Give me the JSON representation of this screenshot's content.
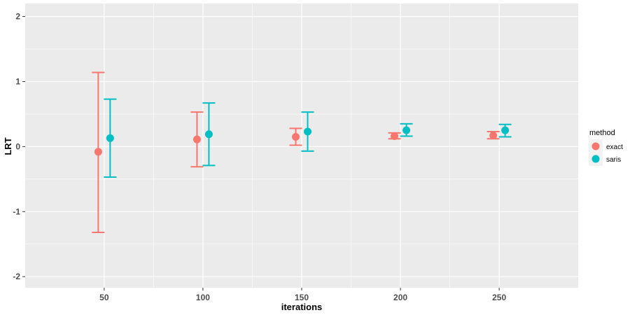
{
  "chart_data": {
    "type": "scatter",
    "subtype": "point-range with error bars",
    "title": "",
    "xlabel": "iterations",
    "ylabel": "LRT",
    "categories": [
      "50",
      "100",
      "150",
      "200",
      "250"
    ],
    "ylim": [
      -2.17,
      2.2
    ],
    "y_ticks": [
      "-2",
      "-1",
      "0",
      "1",
      "2"
    ],
    "x_ticks": [
      "50",
      "100",
      "150",
      "200",
      "250"
    ],
    "grid": true,
    "legend": {
      "title": "method",
      "position": "right"
    },
    "series": [
      {
        "name": "exact",
        "color": "#F8766D",
        "points": [
          {
            "x": "50",
            "y": -0.08,
            "ymin": -1.32,
            "ymax": 1.14
          },
          {
            "x": "100",
            "y": 0.11,
            "ymin": -0.31,
            "ymax": 0.53
          },
          {
            "x": "150",
            "y": 0.15,
            "ymin": 0.02,
            "ymax": 0.28
          },
          {
            "x": "200",
            "y": 0.16,
            "ymin": 0.12,
            "ymax": 0.21
          },
          {
            "x": "250",
            "y": 0.17,
            "ymin": 0.12,
            "ymax": 0.23
          }
        ]
      },
      {
        "name": "saris",
        "color": "#00BFC4",
        "points": [
          {
            "x": "50",
            "y": 0.13,
            "ymin": -0.47,
            "ymax": 0.73
          },
          {
            "x": "100",
            "y": 0.19,
            "ymin": -0.29,
            "ymax": 0.67
          },
          {
            "x": "150",
            "y": 0.23,
            "ymin": -0.07,
            "ymax": 0.53
          },
          {
            "x": "200",
            "y": 0.25,
            "ymin": 0.16,
            "ymax": 0.35
          },
          {
            "x": "250",
            "y": 0.25,
            "ymin": 0.15,
            "ymax": 0.34
          }
        ]
      }
    ]
  },
  "colors": {
    "panel_background": "#EBEBEB",
    "grid_major": "#FFFFFF",
    "exact": "#F8766D",
    "saris": "#00BFC4"
  }
}
